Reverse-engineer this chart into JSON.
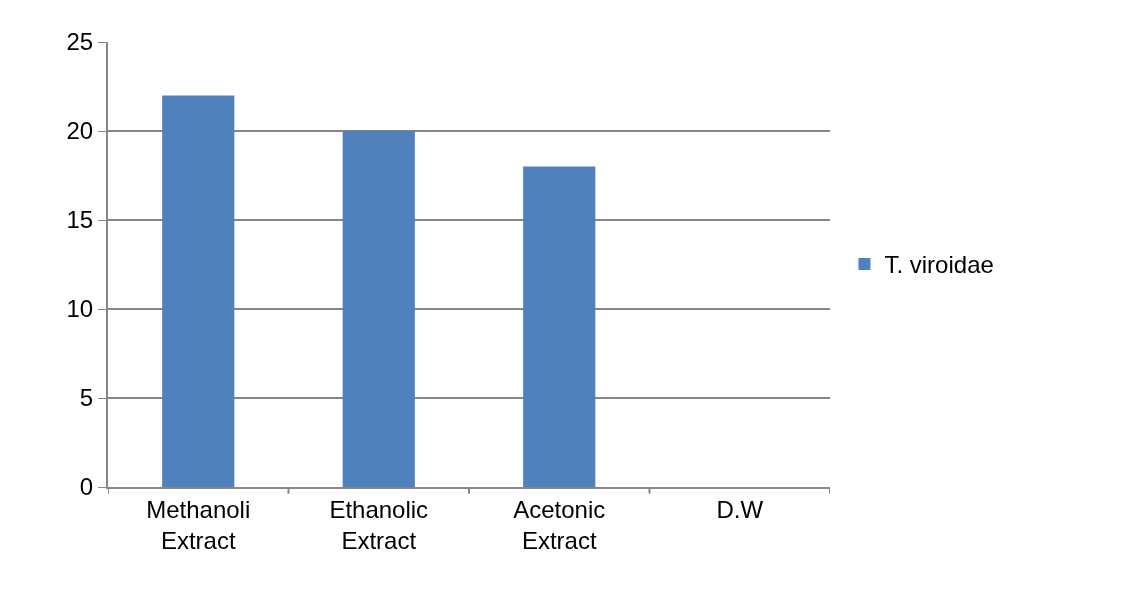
{
  "chart_data": {
    "type": "bar",
    "categories": [
      "Methanoli Extract",
      "Ethanolic Extract",
      "Acetonic Extract",
      "D.W"
    ],
    "series": [
      {
        "name": "T. viroidae",
        "color": "#4f81bd",
        "values": [
          22,
          20,
          18,
          0
        ]
      }
    ],
    "ylim": [
      0,
      25
    ],
    "yticks": [
      0,
      5,
      10,
      15,
      20,
      25
    ],
    "grid": "y",
    "legend": "right"
  }
}
